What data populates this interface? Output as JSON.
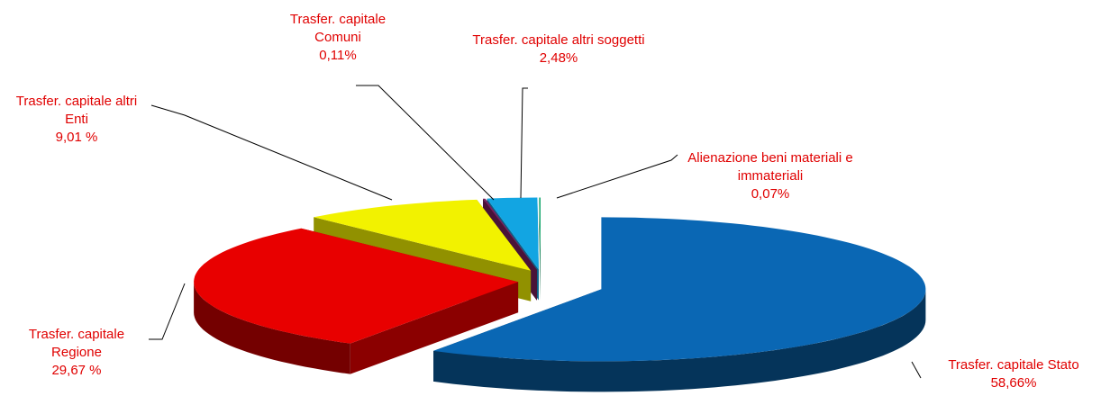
{
  "chart_data": {
    "type": "pie",
    "categories": [
      "Trasfer. capitale Stato",
      "Trasfer. capitale Regione",
      "Trasfer. capitale altri Enti",
      "Trasfer. capitale Comuni",
      "Trasfer. capitale altri soggetti",
      "Alienazione beni materiali e immateriali"
    ],
    "values": [
      58.66,
      29.67,
      9.01,
      0.11,
      2.48,
      0.07
    ],
    "value_labels": [
      "58,66%",
      "29,67 %",
      "9,01 %",
      "0,11%",
      "2,48%",
      "0,07%"
    ],
    "colors": [
      "#0a67b4",
      "#e80000",
      "#f2f200",
      "#7a1f5e",
      "#12a5e2",
      "#00a060"
    ],
    "three_d": true,
    "exploded": true
  }
}
